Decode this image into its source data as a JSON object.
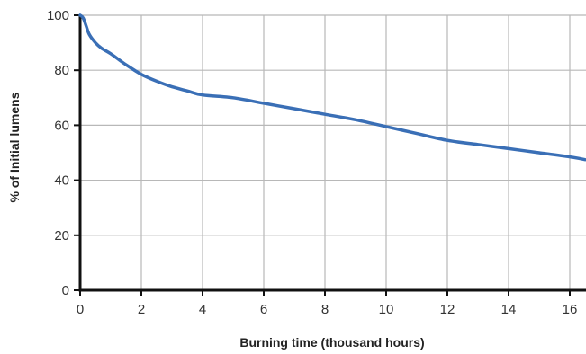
{
  "chart_data": {
    "type": "line",
    "title": "",
    "xlabel": "Burning time (thousand hours)",
    "ylabel": "% of Initial lumens",
    "xlim": [
      0,
      16.5
    ],
    "ylim": [
      0,
      100
    ],
    "x_ticks": [
      "0",
      "2",
      "4",
      "6",
      "8",
      "10",
      "12",
      "14",
      "16"
    ],
    "y_ticks": [
      "0",
      "20",
      "40",
      "60",
      "80",
      "100"
    ],
    "grid": true,
    "series": [
      {
        "color": "#3a6fb6",
        "x": [
          0,
          0.1,
          0.2,
          0.3,
          0.5,
          0.7,
          1.0,
          1.5,
          2.0,
          2.5,
          3.0,
          3.5,
          4.0,
          5.0,
          6.0,
          7.0,
          8.0,
          9.0,
          10.0,
          11.0,
          12.0,
          13.0,
          14.0,
          15.0,
          16.0,
          16.5
        ],
        "y": [
          100,
          99,
          96,
          93,
          90,
          88,
          86,
          82,
          78.5,
          76,
          74,
          72.5,
          71,
          70,
          68,
          66,
          64,
          62,
          59.5,
          57,
          54.5,
          53,
          51.5,
          50,
          48.5,
          47.5
        ]
      }
    ]
  }
}
